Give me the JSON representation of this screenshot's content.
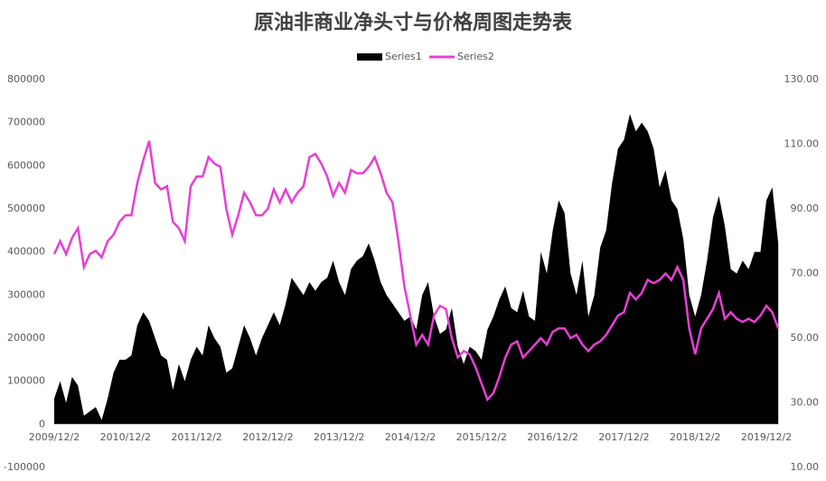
{
  "chart_data": {
    "type": "area-line",
    "title": "原油非商业净头寸与价格周图走势表",
    "categories": [
      "2009/12/2",
      null,
      null,
      null,
      null,
      null,
      null,
      null,
      null,
      null,
      null,
      null,
      "2010/12/2",
      null,
      null,
      null,
      null,
      null,
      null,
      null,
      null,
      null,
      null,
      null,
      "2011/12/2",
      null,
      null,
      null,
      null,
      null,
      null,
      null,
      null,
      null,
      null,
      null,
      "2012/12/2",
      null,
      null,
      null,
      null,
      null,
      null,
      null,
      null,
      null,
      null,
      null,
      "2013/12/2",
      null,
      null,
      null,
      null,
      null,
      null,
      null,
      null,
      null,
      null,
      null,
      "2014/12/2",
      null,
      null,
      null,
      null,
      null,
      null,
      null,
      null,
      null,
      null,
      null,
      "2015/12/2",
      null,
      null,
      null,
      null,
      null,
      null,
      null,
      null,
      null,
      null,
      null,
      "2016/12/2",
      null,
      null,
      null,
      null,
      null,
      null,
      null,
      null,
      null,
      null,
      null,
      "2017/12/2",
      null,
      null,
      null,
      null,
      null,
      null,
      null,
      null,
      null,
      null,
      null,
      "2018/12/2",
      null,
      null,
      null,
      null,
      null,
      null,
      null,
      null,
      null,
      null,
      null,
      "2019/12/2",
      null,
      null
    ],
    "series": [
      {
        "name": "Series1",
        "color": "#000000",
        "axis": "y",
        "values": [
          60000,
          100000,
          50000,
          110000,
          90000,
          20000,
          30000,
          40000,
          10000,
          60000,
          120000,
          150000,
          150000,
          160000,
          230000,
          260000,
          240000,
          200000,
          160000,
          150000,
          80000,
          140000,
          100000,
          150000,
          180000,
          160000,
          230000,
          200000,
          180000,
          120000,
          130000,
          180000,
          230000,
          200000,
          160000,
          200000,
          230000,
          260000,
          230000,
          280000,
          340000,
          320000,
          300000,
          330000,
          310000,
          330000,
          340000,
          380000,
          330000,
          300000,
          360000,
          380000,
          390000,
          420000,
          380000,
          330000,
          300000,
          280000,
          260000,
          240000,
          250000,
          220000,
          300000,
          330000,
          250000,
          210000,
          220000,
          270000,
          180000,
          140000,
          180000,
          170000,
          150000,
          220000,
          250000,
          290000,
          320000,
          270000,
          260000,
          310000,
          250000,
          240000,
          400000,
          350000,
          450000,
          520000,
          490000,
          350000,
          300000,
          380000,
          250000,
          300000,
          410000,
          450000,
          560000,
          640000,
          660000,
          720000,
          680000,
          700000,
          680000,
          640000,
          550000,
          590000,
          520000,
          500000,
          430000,
          300000,
          250000,
          300000,
          380000,
          480000,
          530000,
          460000,
          360000,
          350000,
          380000,
          360000,
          400000,
          400000,
          520000,
          550000,
          420000
        ]
      },
      {
        "name": "Series2",
        "color": "#e83ed6",
        "axis": "y2",
        "values": [
          76,
          80,
          76,
          81,
          84,
          72,
          76,
          77,
          75,
          80,
          82,
          86,
          88,
          88,
          98,
          105,
          111,
          98,
          96,
          97,
          86,
          84,
          80,
          97,
          100,
          100,
          106,
          104,
          103,
          90,
          82,
          88,
          95,
          92,
          88,
          88,
          90,
          96,
          92,
          96,
          92,
          95,
          97,
          106,
          107,
          104,
          100,
          94,
          98,
          95,
          102,
          101,
          101,
          103,
          106,
          101,
          95,
          92,
          80,
          66,
          57,
          48,
          51,
          48,
          57,
          60,
          59,
          50,
          44,
          46,
          45,
          41,
          36,
          31,
          33,
          38,
          44,
          48,
          49,
          44,
          46,
          48,
          50,
          48,
          52,
          53,
          53,
          50,
          51,
          48,
          46,
          48,
          49,
          51,
          54,
          57,
          58,
          64,
          62,
          64,
          68,
          67,
          68,
          70,
          68,
          72,
          68,
          53,
          45,
          53,
          56,
          59,
          64,
          56,
          58,
          56,
          55,
          56,
          55,
          57,
          60,
          58,
          53
        ]
      }
    ],
    "ylim": [
      -100000,
      800000
    ],
    "yticks": [
      -100000,
      0,
      100000,
      200000,
      300000,
      400000,
      500000,
      600000,
      700000,
      800000
    ],
    "y2lim": [
      10,
      130
    ],
    "y2ticks": [
      {
        "value": 10,
        "label": "10.00"
      },
      {
        "value": 30,
        "label": "30.00"
      },
      {
        "value": 50,
        "label": "50.00"
      },
      {
        "value": 70,
        "label": "70.00"
      },
      {
        "value": 90,
        "label": "90.00"
      },
      {
        "value": 110,
        "label": "110.00"
      },
      {
        "value": 130,
        "label": "130.00"
      }
    ],
    "legend": "top"
  }
}
